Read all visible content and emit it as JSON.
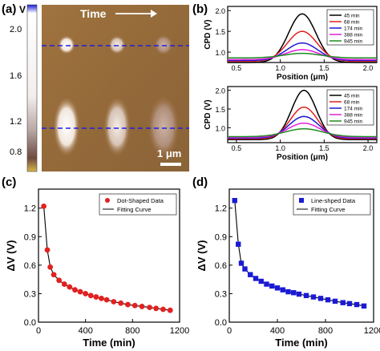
{
  "panel_labels": [
    "(a)",
    "(b)",
    "(c)",
    "(d)"
  ],
  "panel_a": {
    "title_arrow_label": "Time",
    "scale_bar_label": "1 μm",
    "colorbar": {
      "unit": "V",
      "ticks": [
        "2.0",
        "1.6",
        "1.2",
        "0.8"
      ]
    }
  },
  "chart_data": [
    {
      "type": "line",
      "panel": "b-top",
      "xlabel": "Position (μm)",
      "ylabel": "CPD (V)",
      "xlim": [
        0.4,
        2.1
      ],
      "ylim": [
        0.75,
        2.1
      ],
      "xticks": [
        "0.5",
        "1.0",
        "1.5",
        "2.0"
      ],
      "yticks": [
        "1.0",
        "1.5",
        "2.0"
      ],
      "legend_position": "top-right",
      "series": [
        {
          "name": "45 min",
          "color": "#000000",
          "baseline": 0.75,
          "peak": 1.92,
          "center": 1.25,
          "width": 0.22
        },
        {
          "name": "68 min",
          "color": "#e32020",
          "baseline": 0.78,
          "peak": 1.5,
          "center": 1.25,
          "width": 0.24
        },
        {
          "name": "174 min",
          "color": "#1a1ad6",
          "baseline": 0.8,
          "peak": 1.22,
          "center": 1.25,
          "width": 0.25
        },
        {
          "name": "388 min",
          "color": "#e020e0",
          "baseline": 0.82,
          "peak": 1.06,
          "center": 1.25,
          "width": 0.27
        },
        {
          "name": "945 min",
          "color": "#1e8c1e",
          "baseline": 0.86,
          "peak": 0.97,
          "center": 1.25,
          "width": 0.3
        }
      ]
    },
    {
      "type": "line",
      "panel": "b-bottom",
      "xlabel": "Position (μm)",
      "ylabel": "CPD (V)",
      "xlim": [
        0.4,
        2.1
      ],
      "ylim": [
        0.6,
        2.1
      ],
      "xticks": [
        "0.5",
        "1.0",
        "1.5",
        "2.0"
      ],
      "yticks": [
        "1.0",
        "1.5",
        "2.0"
      ],
      "legend_position": "top-right",
      "series": [
        {
          "name": "45 min",
          "color": "#000000",
          "baseline": 0.68,
          "peak": 2.0,
          "center": 1.27,
          "width": 0.2
        },
        {
          "name": "68 min",
          "color": "#e32020",
          "baseline": 0.7,
          "peak": 1.55,
          "center": 1.27,
          "width": 0.22
        },
        {
          "name": "174 min",
          "color": "#1a1ad6",
          "baseline": 0.72,
          "peak": 1.3,
          "center": 1.27,
          "width": 0.24
        },
        {
          "name": "388 min",
          "color": "#e020e0",
          "baseline": 0.74,
          "peak": 1.12,
          "center": 1.27,
          "width": 0.26
        },
        {
          "name": "945 min",
          "color": "#1e8c1e",
          "baseline": 0.76,
          "peak": 0.97,
          "center": 1.27,
          "width": 0.3
        }
      ]
    },
    {
      "type": "scatter",
      "panel": "c",
      "xlabel": "Time (min)",
      "ylabel": "ΔV (V)",
      "xlim": [
        0,
        1200
      ],
      "ylim": [
        0,
        1.4
      ],
      "xticks": [
        "0",
        "400",
        "800",
        "1200"
      ],
      "yticks": [
        "0.0",
        "0.3",
        "0.6",
        "0.9",
        "1.2"
      ],
      "legend_position": "top-right",
      "series": [
        {
          "name": "Dot-Shaped Data",
          "marker": "circle",
          "color": "#e32020",
          "x": [
            45,
            75,
            100,
            130,
            175,
            220,
            265,
            310,
            355,
            400,
            445,
            490,
            535,
            580,
            640,
            700,
            760,
            820,
            880,
            945,
            1000,
            1060,
            1120
          ],
          "y": [
            1.22,
            0.76,
            0.58,
            0.5,
            0.44,
            0.4,
            0.37,
            0.34,
            0.32,
            0.3,
            0.28,
            0.265,
            0.25,
            0.235,
            0.215,
            0.2,
            0.185,
            0.175,
            0.165,
            0.155,
            0.145,
            0.135,
            0.125
          ]
        },
        {
          "name": "Fitting Curve",
          "type": "line",
          "color": "#000000"
        }
      ]
    },
    {
      "type": "scatter",
      "panel": "d",
      "xlabel": "Time (min)",
      "ylabel": "ΔV (V)",
      "xlim": [
        0,
        1200
      ],
      "ylim": [
        0,
        1.4
      ],
      "xticks": [
        "0",
        "400",
        "800",
        "1200"
      ],
      "yticks": [
        "0.0",
        "0.3",
        "0.6",
        "0.9",
        "1.2"
      ],
      "legend_position": "top-right",
      "series": [
        {
          "name": "Line-shped Data",
          "marker": "square",
          "color": "#1a1ad6",
          "x": [
            45,
            75,
            100,
            130,
            175,
            220,
            265,
            310,
            355,
            400,
            445,
            490,
            535,
            580,
            640,
            700,
            760,
            820,
            880,
            945,
            1000,
            1060,
            1120
          ],
          "y": [
            1.28,
            0.82,
            0.62,
            0.56,
            0.5,
            0.46,
            0.43,
            0.4,
            0.38,
            0.36,
            0.34,
            0.32,
            0.31,
            0.295,
            0.28,
            0.265,
            0.25,
            0.235,
            0.22,
            0.205,
            0.195,
            0.185,
            0.17
          ]
        },
        {
          "name": "Fitting Curve",
          "type": "line",
          "color": "#000000"
        }
      ]
    }
  ]
}
